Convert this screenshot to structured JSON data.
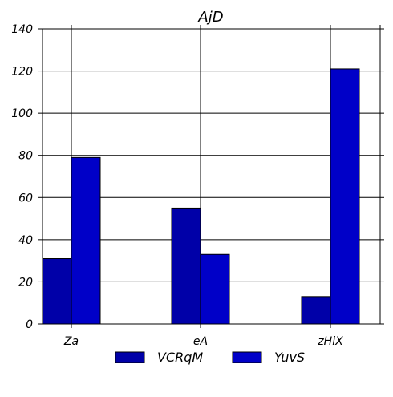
{
  "chart_data": {
    "type": "bar",
    "title": "AjD",
    "xlabel": "",
    "ylabel": "",
    "categories": [
      "Za",
      "eA",
      "zHiX"
    ],
    "series": [
      {
        "name": "VCRqM",
        "values": [
          31,
          55,
          13
        ],
        "color": "#0000a8"
      },
      {
        "name": "YuvS",
        "values": [
          79,
          33,
          121
        ],
        "color": "#0000c8"
      }
    ],
    "ylim": [
      0,
      140
    ],
    "yticks": [
      0,
      20,
      40,
      60,
      80,
      100,
      120,
      140
    ],
    "grid": true,
    "legend_position": "bottom-center"
  }
}
